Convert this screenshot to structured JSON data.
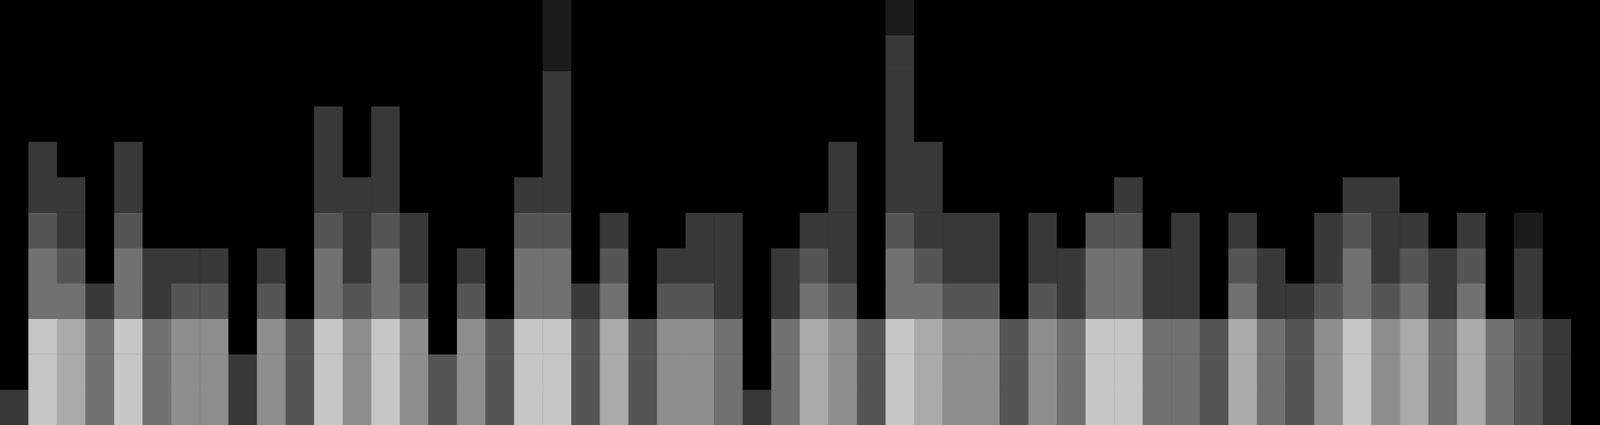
{
  "chart_data": {
    "type": "heatmap",
    "tick_labels": false,
    "grid": false,
    "cell_range": [
      0,
      9
    ],
    "cells": [
      [
        2,
        7,
        6,
        4,
        7,
        4,
        5,
        5,
        2,
        5,
        3,
        7,
        5,
        7,
        5,
        3,
        5,
        3,
        7,
        7,
        3,
        6,
        3,
        5,
        5,
        4,
        2,
        4,
        6,
        5,
        3,
        7,
        6,
        5,
        5,
        3,
        5,
        4,
        7,
        7,
        4,
        4,
        3,
        6,
        4,
        3,
        5,
        7,
        5,
        6,
        4,
        6,
        4,
        3,
        2,
        0
      ],
      [
        0,
        7,
        6,
        4,
        7,
        4,
        5,
        5,
        2,
        5,
        3,
        7,
        5,
        7,
        5,
        3,
        5,
        3,
        7,
        7,
        3,
        6,
        3,
        5,
        5,
        4,
        0,
        4,
        6,
        5,
        3,
        7,
        6,
        5,
        5,
        3,
        5,
        4,
        7,
        7,
        4,
        4,
        3,
        6,
        4,
        3,
        5,
        7,
        5,
        6,
        4,
        6,
        4,
        3,
        2,
        0
      ],
      [
        0,
        7,
        6,
        4,
        7,
        4,
        5,
        5,
        0,
        5,
        3,
        7,
        5,
        7,
        5,
        0,
        5,
        3,
        7,
        7,
        3,
        6,
        3,
        5,
        5,
        4,
        0,
        4,
        6,
        5,
        3,
        7,
        6,
        5,
        5,
        3,
        5,
        4,
        7,
        7,
        4,
        4,
        3,
        6,
        4,
        3,
        5,
        7,
        5,
        6,
        4,
        6,
        4,
        3,
        2,
        0
      ],
      [
        0,
        4,
        4,
        2,
        4,
        2,
        3,
        3,
        0,
        3,
        0,
        4,
        3,
        4,
        3,
        0,
        3,
        0,
        4,
        4,
        2,
        4,
        0,
        3,
        3,
        2,
        0,
        2,
        4,
        3,
        0,
        4,
        4,
        3,
        3,
        0,
        3,
        2,
        4,
        4,
        2,
        2,
        0,
        4,
        2,
        2,
        3,
        4,
        3,
        4,
        2,
        4,
        0,
        2,
        0,
        0
      ],
      [
        0,
        4,
        3,
        0,
        4,
        2,
        2,
        2,
        0,
        2,
        0,
        4,
        2,
        4,
        2,
        0,
        2,
        0,
        4,
        4,
        0,
        3,
        0,
        2,
        2,
        2,
        0,
        2,
        3,
        2,
        0,
        4,
        3,
        2,
        2,
        0,
        2,
        2,
        4,
        4,
        2,
        2,
        0,
        3,
        2,
        0,
        2,
        4,
        2,
        3,
        2,
        3,
        0,
        2,
        0,
        0
      ],
      [
        0,
        3,
        2,
        0,
        3,
        0,
        0,
        0,
        0,
        0,
        0,
        3,
        2,
        3,
        2,
        0,
        0,
        0,
        3,
        3,
        0,
        2,
        0,
        0,
        2,
        2,
        0,
        0,
        2,
        2,
        0,
        3,
        2,
        2,
        2,
        0,
        2,
        0,
        3,
        3,
        0,
        2,
        0,
        2,
        0,
        0,
        2,
        3,
        2,
        2,
        0,
        2,
        0,
        1,
        0,
        0
      ],
      [
        0,
        2,
        2,
        0,
        2,
        0,
        0,
        0,
        0,
        0,
        0,
        2,
        2,
        2,
        0,
        0,
        0,
        0,
        2,
        2,
        0,
        0,
        0,
        0,
        0,
        0,
        0,
        0,
        0,
        2,
        0,
        2,
        2,
        0,
        0,
        0,
        0,
        0,
        0,
        2,
        0,
        0,
        0,
        0,
        0,
        0,
        0,
        2,
        2,
        0,
        0,
        0,
        0,
        0,
        0,
        0
      ],
      [
        0,
        2,
        0,
        0,
        2,
        0,
        0,
        0,
        0,
        0,
        0,
        2,
        0,
        2,
        0,
        0,
        0,
        0,
        0,
        2,
        0,
        0,
        0,
        0,
        0,
        0,
        0,
        0,
        0,
        2,
        0,
        2,
        2,
        0,
        0,
        0,
        0,
        0,
        0,
        0,
        0,
        0,
        0,
        0,
        0,
        0,
        0,
        0,
        0,
        0,
        0,
        0,
        0,
        0,
        0,
        0
      ],
      [
        0,
        0,
        0,
        0,
        0,
        0,
        0,
        0,
        0,
        0,
        0,
        2,
        0,
        2,
        0,
        0,
        0,
        0,
        0,
        2,
        0,
        0,
        0,
        0,
        0,
        0,
        0,
        0,
        0,
        0,
        0,
        2,
        0,
        0,
        0,
        0,
        0,
        0,
        0,
        0,
        0,
        0,
        0,
        0,
        0,
        0,
        0,
        0,
        0,
        0,
        0,
        0,
        0,
        0,
        0,
        0
      ],
      [
        0,
        0,
        0,
        0,
        0,
        0,
        0,
        0,
        0,
        0,
        0,
        0,
        0,
        0,
        0,
        0,
        0,
        0,
        0,
        2,
        0,
        0,
        0,
        0,
        0,
        0,
        0,
        0,
        0,
        0,
        0,
        2,
        0,
        0,
        0,
        0,
        0,
        0,
        0,
        0,
        0,
        0,
        0,
        0,
        0,
        0,
        0,
        0,
        0,
        0,
        0,
        0,
        0,
        0,
        0,
        0
      ],
      [
        0,
        0,
        0,
        0,
        0,
        0,
        0,
        0,
        0,
        0,
        0,
        0,
        0,
        0,
        0,
        0,
        0,
        0,
        0,
        1,
        0,
        0,
        0,
        0,
        0,
        0,
        0,
        0,
        0,
        0,
        0,
        2,
        0,
        0,
        0,
        0,
        0,
        0,
        0,
        0,
        0,
        0,
        0,
        0,
        0,
        0,
        0,
        0,
        0,
        0,
        0,
        0,
        0,
        0,
        0,
        0
      ],
      [
        0,
        0,
        0,
        0,
        0,
        0,
        0,
        0,
        0,
        0,
        0,
        0,
        0,
        0,
        0,
        0,
        0,
        0,
        0,
        1,
        0,
        0,
        0,
        0,
        0,
        0,
        0,
        0,
        0,
        0,
        0,
        1,
        0,
        0,
        0,
        0,
        0,
        0,
        0,
        0,
        0,
        0,
        0,
        0,
        0,
        0,
        0,
        0,
        0,
        0,
        0,
        0,
        0,
        0,
        0,
        0
      ]
    ]
  }
}
